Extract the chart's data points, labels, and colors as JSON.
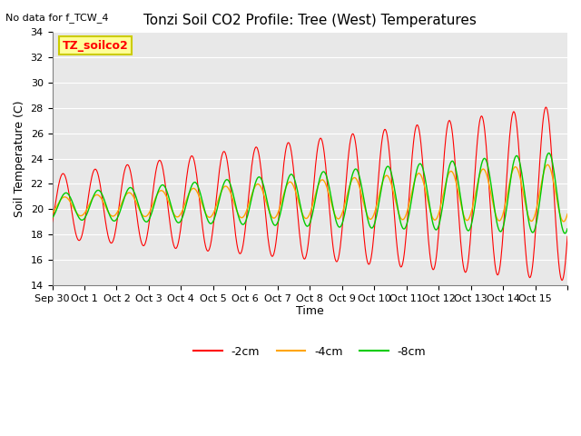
{
  "title": "Tonzi Soil CO2 Profile: Tree (West) Temperatures",
  "subtitle": "No data for f_TCW_4",
  "ylabel": "Soil Temperature (C)",
  "xlabel": "Time",
  "ylim": [
    14,
    34
  ],
  "yticks": [
    14,
    16,
    18,
    20,
    22,
    24,
    26,
    28,
    30,
    32,
    34
  ],
  "bg_color": "#e8e8e8",
  "fig_color": "#ffffff",
  "line_colors": {
    "2cm": "#ff0000",
    "4cm": "#ffa500",
    "8cm": "#00cc00"
  },
  "legend_labels": [
    "-2cm",
    "-4cm",
    "-8cm"
  ],
  "box_label": "TZ_soilco2",
  "box_color": "#ffff99",
  "box_border": "#cccc00",
  "n_days": 16,
  "x_tick_labels": [
    "Sep 30",
    "Oct 1",
    "Oct 2",
    "Oct 3",
    "Oct 4",
    "Oct 5",
    "Oct 6",
    "Oct 7",
    "Oct 8",
    "Oct 9",
    "Oct 10",
    "Oct 11",
    "Oct 12",
    "Oct 13",
    "Oct 14",
    "Oct 15",
    ""
  ]
}
